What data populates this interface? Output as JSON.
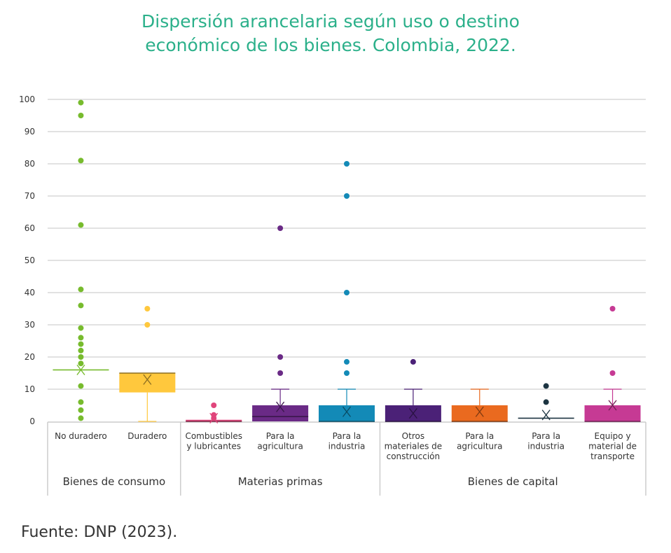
{
  "title_lines": [
    "Dispersión arancelaria según uso o destino",
    "económico de los bienes. Colombia, 2022."
  ],
  "source": "Fuente: DNP (2023).",
  "colors": {
    "title": "#2bb08a",
    "grid": "#d9d9d9",
    "axis": "#cccccc"
  },
  "chart_data": {
    "type": "box",
    "title": "Dispersión arancelaria según uso o destino económico de los bienes. Colombia, 2022.",
    "ylim": [
      0,
      100
    ],
    "yticks": [
      0,
      10,
      20,
      30,
      40,
      50,
      60,
      70,
      80,
      90,
      100
    ],
    "grid": true,
    "groups": [
      {
        "label": "Bienes de consumo",
        "span": [
          0,
          1
        ]
      },
      {
        "label": "Materias primas",
        "span": [
          2,
          4
        ]
      },
      {
        "label": "Bienes de capital",
        "span": [
          5,
          8
        ]
      }
    ],
    "categories": [
      {
        "label_lines": [
          "No duradero"
        ],
        "color": "#77bb2d",
        "min": 16,
        "q1": 16,
        "median": 16,
        "q3": 16,
        "max": 16,
        "mean": 16,
        "outliers": [
          99,
          95,
          81,
          61,
          41,
          36,
          29,
          26,
          24,
          22,
          20,
          18,
          11,
          6,
          3.5,
          1
        ]
      },
      {
        "label_lines": [
          "Duradero"
        ],
        "color": "#ffc83d",
        "min": 0,
        "q1": 9,
        "median": 15,
        "q3": 15,
        "max": 15,
        "mean": 13,
        "outliers": [
          35,
          30
        ]
      },
      {
        "label_lines": [
          "Combustibles",
          "y lubricantes"
        ],
        "color": "#e0457b",
        "min": 0,
        "q1": 0,
        "median": 0,
        "q3": 0.5,
        "max": 0.5,
        "mean": 1,
        "outliers": [
          5,
          2,
          1
        ]
      },
      {
        "label_lines": [
          "Para la",
          "agricultura"
        ],
        "color": "#6a2a86",
        "min": 0,
        "q1": 0,
        "median": 1.5,
        "q3": 5,
        "max": 10,
        "mean": 4.5,
        "outliers": [
          60,
          20,
          15
        ]
      },
      {
        "label_lines": [
          "Para la",
          "industria"
        ],
        "color": "#138ab7",
        "min": 0,
        "q1": 0,
        "median": 0,
        "q3": 5,
        "max": 10,
        "mean": 3,
        "outliers": [
          80,
          70,
          40,
          18.5,
          15
        ]
      },
      {
        "label_lines": [
          "Otros",
          "materiales de",
          "construcción"
        ],
        "color": "#4b2177",
        "min": 0,
        "q1": 0,
        "median": 0,
        "q3": 5,
        "max": 10,
        "mean": 2.5,
        "outliers": [
          18.5
        ]
      },
      {
        "label_lines": [
          "Para la",
          "agricultura"
        ],
        "color": "#ea6a1f",
        "min": 0,
        "q1": 0,
        "median": 0,
        "q3": 5,
        "max": 10,
        "mean": 3,
        "outliers": []
      },
      {
        "label_lines": [
          "Para la",
          "industria"
        ],
        "color": "#1c3441",
        "min": 1,
        "q1": 1,
        "median": 1,
        "q3": 1,
        "max": 1,
        "mean": 2,
        "outliers": [
          11,
          6
        ]
      },
      {
        "label_lines": [
          "Equipo y",
          "material de",
          "transporte"
        ],
        "color": "#c63a94",
        "min": 0,
        "q1": 0,
        "median": 0,
        "q3": 5,
        "max": 10,
        "mean": 5,
        "outliers": [
          35,
          15
        ]
      }
    ]
  }
}
